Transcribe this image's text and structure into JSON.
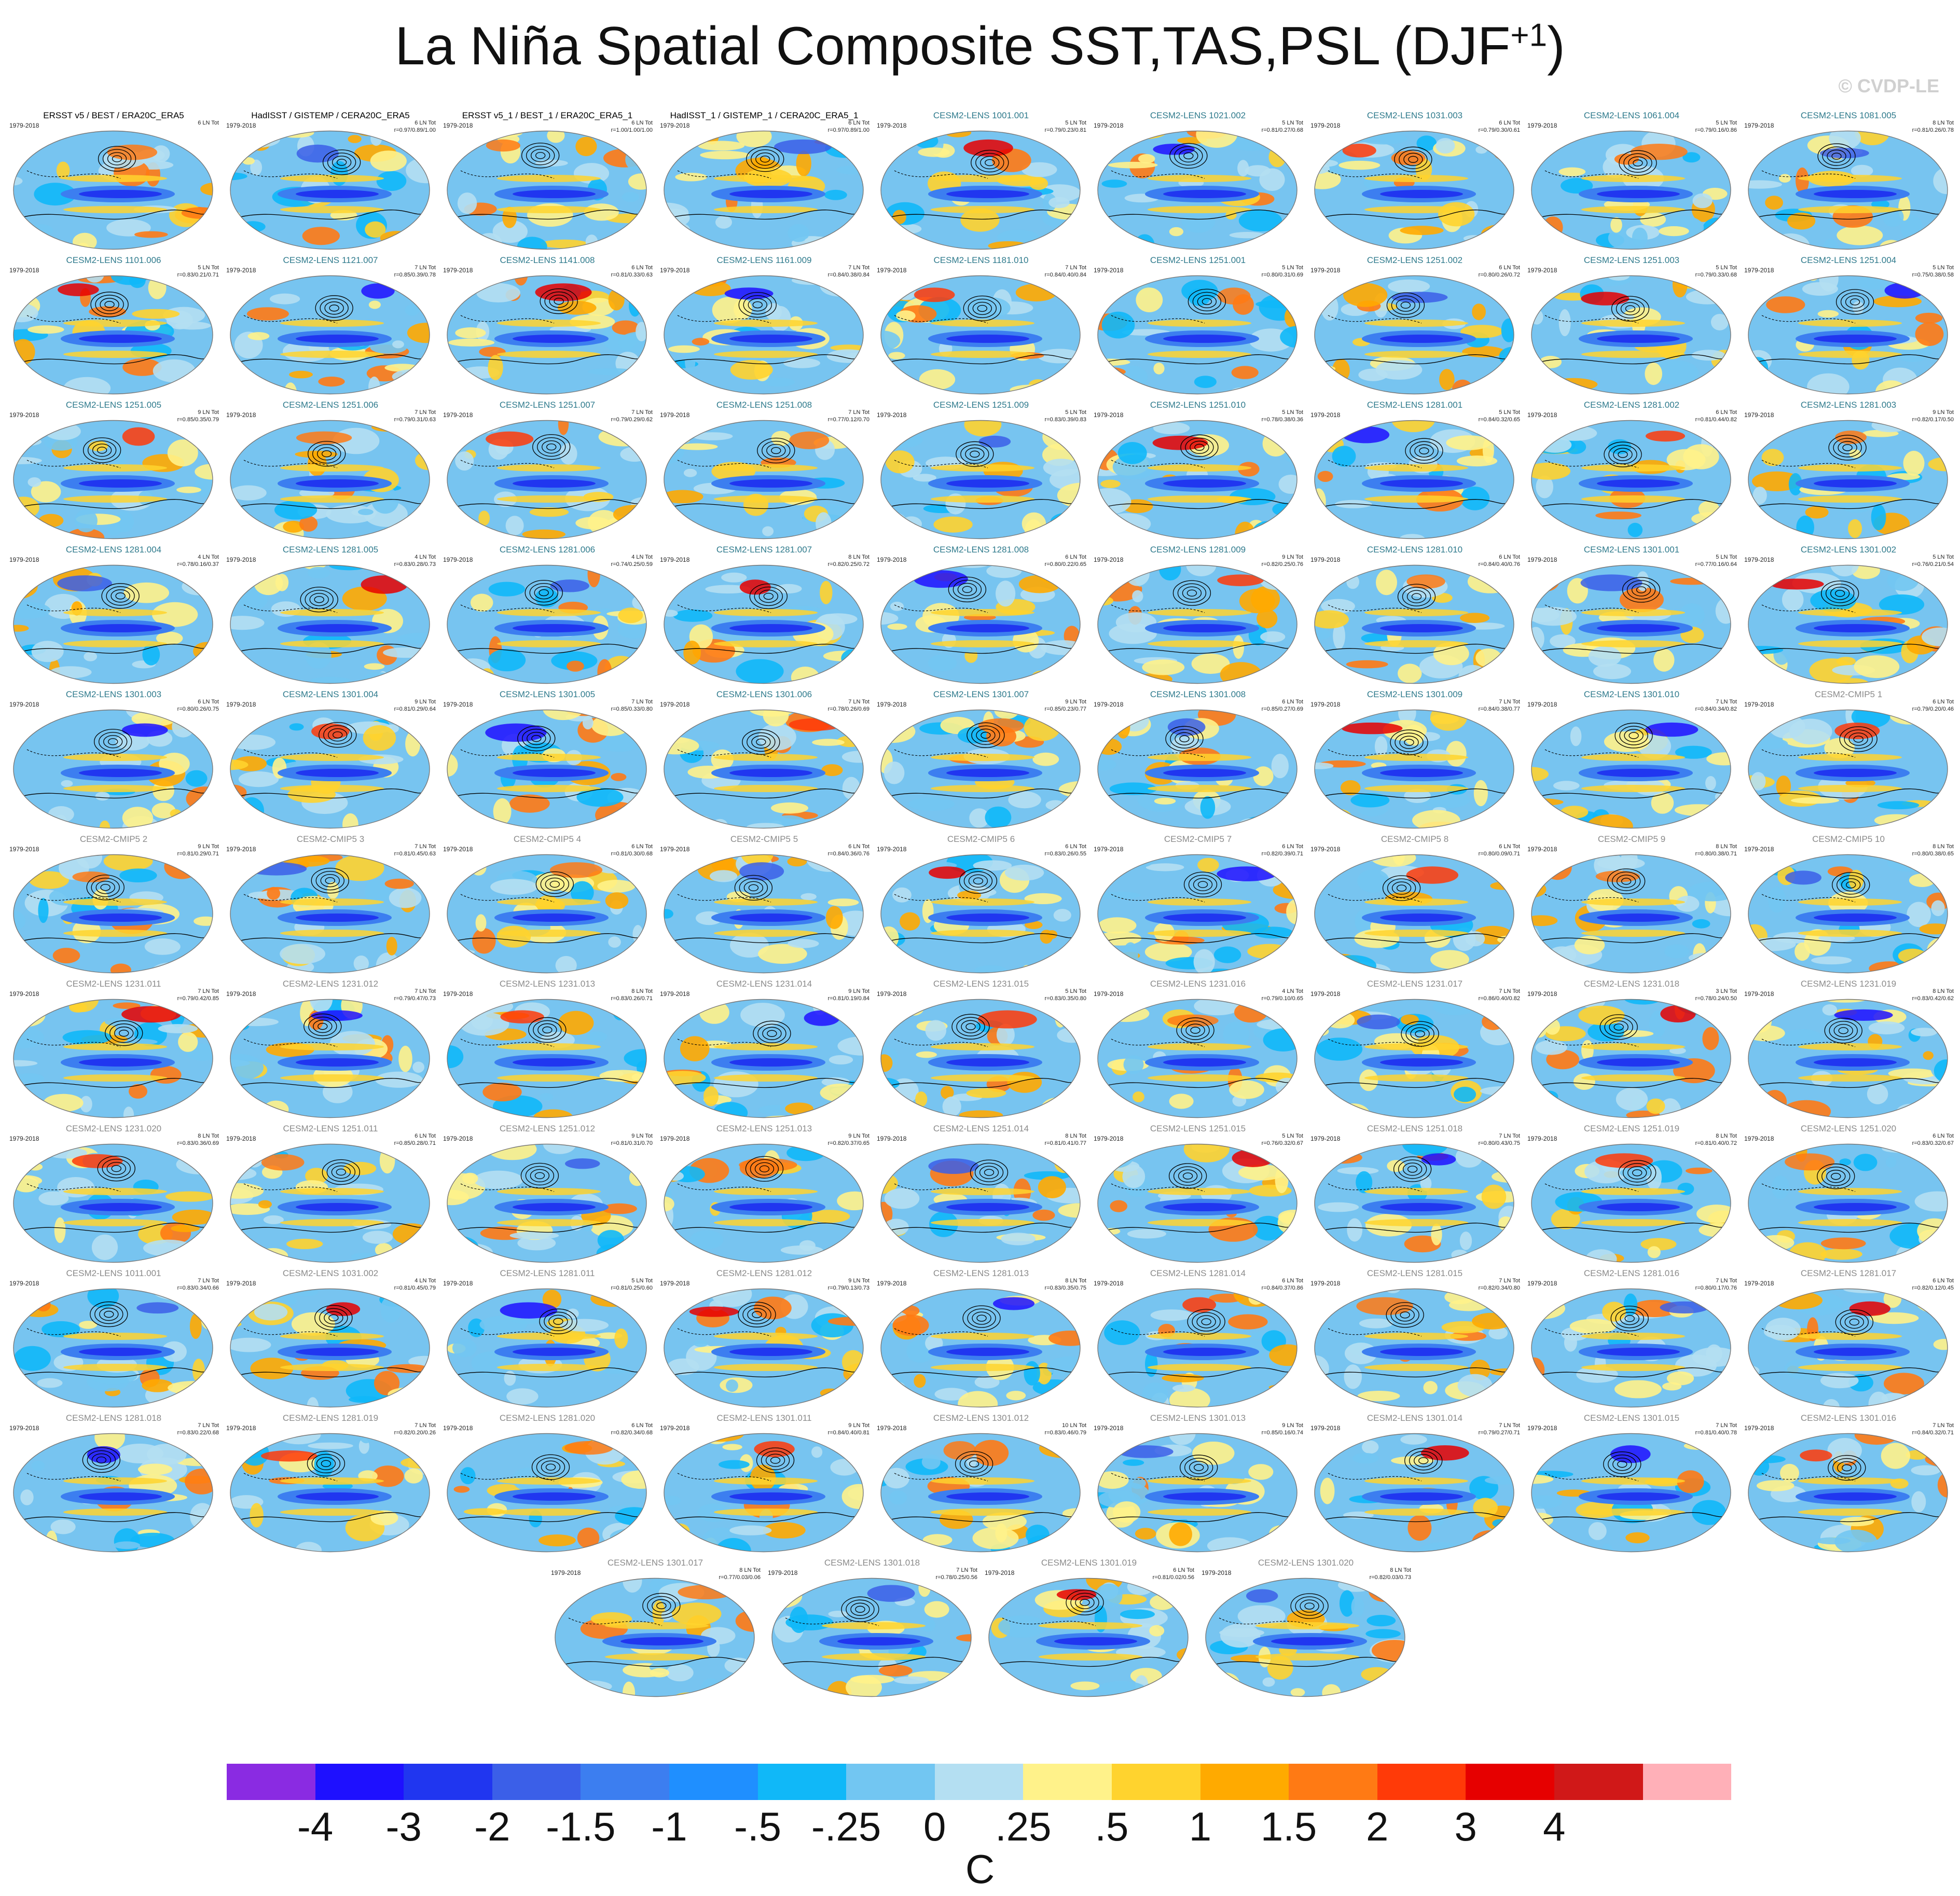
{
  "title": {
    "main": "La Niña Spatial Composite SST,TAS,PSL (DJF",
    "sup": "+1",
    "close": ")"
  },
  "credit": "© CVDP-LE",
  "years": "1979-2018",
  "colors": {
    "ocean_base": "#77c4f0",
    "obs_title": "#000000",
    "lens_title": "#2e7a8c",
    "cmip_title": "#8a8a8a",
    "contour": "#000000"
  },
  "panels": [
    {
      "name": "ERSST v5 / BEST / ERA20C_ERA5",
      "kind": "obs",
      "events": "6 LN Tot",
      "corr": ""
    },
    {
      "name": "HadISST / GISTEMP / CERA20C_ERA5",
      "kind": "obs",
      "events": "6 LN Tot",
      "corr": "r=0.97/0.89/1.00"
    },
    {
      "name": "ERSST v5_1 / BEST_1 / ERA20C_ERA5_1",
      "kind": "obs",
      "events": "6 LN Tot",
      "corr": "r=1.00/1.00/1.00"
    },
    {
      "name": "HadISST_1 / GISTEMP_1 / CERA20C_ERA5_1",
      "kind": "obs",
      "events": "6 LN Tot",
      "corr": "r=0.97/0.89/1.00"
    },
    {
      "name": "CESM2-LENS 1001.001",
      "kind": "lens",
      "events": "5 LN Tot",
      "corr": "r=0.79/0.23/0.81"
    },
    {
      "name": "CESM2-LENS 1021.002",
      "kind": "lens",
      "events": "5 LN Tot",
      "corr": "r=0.81/0.27/0.68"
    },
    {
      "name": "CESM2-LENS 1031.003",
      "kind": "lens",
      "events": "6 LN Tot",
      "corr": "r=0.79/0.30/0.61"
    },
    {
      "name": "CESM2-LENS 1061.004",
      "kind": "lens",
      "events": "5 LN Tot",
      "corr": "r=0.79/0.16/0.86"
    },
    {
      "name": "CESM2-LENS 1081.005",
      "kind": "lens",
      "events": "8 LN Tot",
      "corr": "r=0.81/0.26/0.78"
    },
    {
      "name": "CESM2-LENS 1101.006",
      "kind": "lens",
      "events": "5 LN Tot",
      "corr": "r=0.83/0.21/0.71"
    },
    {
      "name": "CESM2-LENS 1121.007",
      "kind": "lens",
      "events": "7 LN Tot",
      "corr": "r=0.85/0.39/0.78"
    },
    {
      "name": "CESM2-LENS 1141.008",
      "kind": "lens",
      "events": "6 LN Tot",
      "corr": "r=0.81/0.33/0.63"
    },
    {
      "name": "CESM2-LENS 1161.009",
      "kind": "lens",
      "events": "7 LN Tot",
      "corr": "r=0.84/0.38/0.84"
    },
    {
      "name": "CESM2-LENS 1181.010",
      "kind": "lens",
      "events": "7 LN Tot",
      "corr": "r=0.84/0.40/0.84"
    },
    {
      "name": "CESM2-LENS 1251.001",
      "kind": "lens",
      "events": "5 LN Tot",
      "corr": "r=0.80/0.31/0.69"
    },
    {
      "name": "CESM2-LENS 1251.002",
      "kind": "lens",
      "events": "6 LN Tot",
      "corr": "r=0.80/0.26/0.72"
    },
    {
      "name": "CESM2-LENS 1251.003",
      "kind": "lens",
      "events": "5 LN Tot",
      "corr": "r=0.79/0.33/0.68"
    },
    {
      "name": "CESM2-LENS 1251.004",
      "kind": "lens",
      "events": "5 LN Tot",
      "corr": "r=0.75/0.38/0.58"
    },
    {
      "name": "CESM2-LENS 1251.005",
      "kind": "lens",
      "events": "9 LN Tot",
      "corr": "r=0.85/0.35/0.79"
    },
    {
      "name": "CESM2-LENS 1251.006",
      "kind": "lens",
      "events": "7 LN Tot",
      "corr": "r=0.79/0.31/0.63"
    },
    {
      "name": "CESM2-LENS 1251.007",
      "kind": "lens",
      "events": "7 LN Tot",
      "corr": "r=0.79/0.29/0.62"
    },
    {
      "name": "CESM2-LENS 1251.008",
      "kind": "lens",
      "events": "7 LN Tot",
      "corr": "r=0.77/0.12/0.70"
    },
    {
      "name": "CESM2-LENS 1251.009",
      "kind": "lens",
      "events": "5 LN Tot",
      "corr": "r=0.83/0.39/0.83"
    },
    {
      "name": "CESM2-LENS 1251.010",
      "kind": "lens",
      "events": "5 LN Tot",
      "corr": "r=0.78/0.38/0.36"
    },
    {
      "name": "CESM2-LENS 1281.001",
      "kind": "lens",
      "events": "5 LN Tot",
      "corr": "r=0.84/0.32/0.65"
    },
    {
      "name": "CESM2-LENS 1281.002",
      "kind": "lens",
      "events": "6 LN Tot",
      "corr": "r=0.81/0.44/0.82"
    },
    {
      "name": "CESM2-LENS 1281.003",
      "kind": "lens",
      "events": "9 LN Tot",
      "corr": "r=0.82/0.17/0.50"
    },
    {
      "name": "CESM2-LENS 1281.004",
      "kind": "lens",
      "events": "4 LN Tot",
      "corr": "r=0.78/0.16/0.37"
    },
    {
      "name": "CESM2-LENS 1281.005",
      "kind": "lens",
      "events": "4 LN Tot",
      "corr": "r=0.83/0.28/0.73"
    },
    {
      "name": "CESM2-LENS 1281.006",
      "kind": "lens",
      "events": "4 LN Tot",
      "corr": "r=0.74/0.25/0.59"
    },
    {
      "name": "CESM2-LENS 1281.007",
      "kind": "lens",
      "events": "8 LN Tot",
      "corr": "r=0.82/0.25/0.72"
    },
    {
      "name": "CESM2-LENS 1281.008",
      "kind": "lens",
      "events": "6 LN Tot",
      "corr": "r=0.80/0.22/0.65"
    },
    {
      "name": "CESM2-LENS 1281.009",
      "kind": "lens",
      "events": "9 LN Tot",
      "corr": "r=0.82/0.25/0.76"
    },
    {
      "name": "CESM2-LENS 1281.010",
      "kind": "lens",
      "events": "6 LN Tot",
      "corr": "r=0.84/0.40/0.76"
    },
    {
      "name": "CESM2-LENS 1301.001",
      "kind": "lens",
      "events": "5 LN Tot",
      "corr": "r=0.77/0.16/0.64"
    },
    {
      "name": "CESM2-LENS 1301.002",
      "kind": "lens",
      "events": "5 LN Tot",
      "corr": "r=0.76/0.21/0.54"
    },
    {
      "name": "CESM2-LENS 1301.003",
      "kind": "lens",
      "events": "6 LN Tot",
      "corr": "r=0.80/0.26/0.75"
    },
    {
      "name": "CESM2-LENS 1301.004",
      "kind": "lens",
      "events": "9 LN Tot",
      "corr": "r=0.81/0.29/0.64"
    },
    {
      "name": "CESM2-LENS 1301.005",
      "kind": "lens",
      "events": "7 LN Tot",
      "corr": "r=0.85/0.33/0.80"
    },
    {
      "name": "CESM2-LENS 1301.006",
      "kind": "lens",
      "events": "7 LN Tot",
      "corr": "r=0.78/0.26/0.69"
    },
    {
      "name": "CESM2-LENS 1301.007",
      "kind": "lens",
      "events": "9 LN Tot",
      "corr": "r=0.85/0.23/0.77"
    },
    {
      "name": "CESM2-LENS 1301.008",
      "kind": "lens",
      "events": "6 LN Tot",
      "corr": "r=0.85/0.27/0.69"
    },
    {
      "name": "CESM2-LENS 1301.009",
      "kind": "lens",
      "events": "7 LN Tot",
      "corr": "r=0.84/0.38/0.77"
    },
    {
      "name": "CESM2-LENS 1301.010",
      "kind": "lens",
      "events": "7 LN Tot",
      "corr": "r=0.84/0.34/0.82"
    },
    {
      "name": "CESM2-CMIP5 1",
      "kind": "cmip",
      "events": "6 LN Tot",
      "corr": "r=0.79/0.20/0.46"
    },
    {
      "name": "CESM2-CMIP5 2",
      "kind": "cmip",
      "events": "9 LN Tot",
      "corr": "r=0.81/0.29/0.71"
    },
    {
      "name": "CESM2-CMIP5 3",
      "kind": "cmip",
      "events": "7 LN Tot",
      "corr": "r=0.81/0.45/0.63"
    },
    {
      "name": "CESM2-CMIP5 4",
      "kind": "cmip",
      "events": "6 LN Tot",
      "corr": "r=0.81/0.30/0.68"
    },
    {
      "name": "CESM2-CMIP5 5",
      "kind": "cmip",
      "events": "6 LN Tot",
      "corr": "r=0.84/0.36/0.76"
    },
    {
      "name": "CESM2-CMIP5 6",
      "kind": "cmip",
      "events": "6 LN Tot",
      "corr": "r=0.83/0.26/0.55"
    },
    {
      "name": "CESM2-CMIP5 7",
      "kind": "cmip",
      "events": "6 LN Tot",
      "corr": "r=0.82/0.39/0.71"
    },
    {
      "name": "CESM2-CMIP5 8",
      "kind": "cmip",
      "events": "6 LN Tot",
      "corr": "r=0.80/0.09/0.71"
    },
    {
      "name": "CESM2-CMIP5 9",
      "kind": "cmip",
      "events": "8 LN Tot",
      "corr": "r=0.80/0.38/0.71"
    },
    {
      "name": "CESM2-CMIP5 10",
      "kind": "cmip",
      "events": "8 LN Tot",
      "corr": "r=0.80/0.38/0.65"
    },
    {
      "name": "CESM2-LENS 1231.011",
      "kind": "cmip",
      "events": "7 LN Tot",
      "corr": "r=0.79/0.42/0.85"
    },
    {
      "name": "CESM2-LENS 1231.012",
      "kind": "cmip",
      "events": "7 LN Tot",
      "corr": "r=0.79/0.47/0.73"
    },
    {
      "name": "CESM2-LENS 1231.013",
      "kind": "cmip",
      "events": "8 LN Tot",
      "corr": "r=0.83/0.26/0.71"
    },
    {
      "name": "CESM2-LENS 1231.014",
      "kind": "cmip",
      "events": "9 LN Tot",
      "corr": "r=0.81/0.19/0.84"
    },
    {
      "name": "CESM2-LENS 1231.015",
      "kind": "cmip",
      "events": "5 LN Tot",
      "corr": "r=0.83/0.35/0.80"
    },
    {
      "name": "CESM2-LENS 1231.016",
      "kind": "cmip",
      "events": "4 LN Tot",
      "corr": "r=0.79/0.10/0.65"
    },
    {
      "name": "CESM2-LENS 1231.017",
      "kind": "cmip",
      "events": "7 LN Tot",
      "corr": "r=0.86/0.40/0.82"
    },
    {
      "name": "CESM2-LENS 1231.018",
      "kind": "cmip",
      "events": "3 LN Tot",
      "corr": "r=0.78/0.24/0.50"
    },
    {
      "name": "CESM2-LENS 1231.019",
      "kind": "cmip",
      "events": "8 LN Tot",
      "corr": "r=0.83/0.42/0.62"
    },
    {
      "name": "CESM2-LENS 1231.020",
      "kind": "cmip",
      "events": "8 LN Tot",
      "corr": "r=0.83/0.36/0.69"
    },
    {
      "name": "CESM2-LENS 1251.011",
      "kind": "cmip",
      "events": "6 LN Tot",
      "corr": "r=0.85/0.28/0.71"
    },
    {
      "name": "CESM2-LENS 1251.012",
      "kind": "cmip",
      "events": "9 LN Tot",
      "corr": "r=0.81/0.31/0.70"
    },
    {
      "name": "CESM2-LENS 1251.013",
      "kind": "cmip",
      "events": "9 LN Tot",
      "corr": "r=0.82/0.37/0.65"
    },
    {
      "name": "CESM2-LENS 1251.014",
      "kind": "cmip",
      "events": "8 LN Tot",
      "corr": "r=0.81/0.41/0.77"
    },
    {
      "name": "CESM2-LENS 1251.015",
      "kind": "cmip",
      "events": "5 LN Tot",
      "corr": "r=0.76/0.32/0.67"
    },
    {
      "name": "CESM2-LENS 1251.018",
      "kind": "cmip",
      "events": "7 LN Tot",
      "corr": "r=0.80/0.43/0.75"
    },
    {
      "name": "CESM2-LENS 1251.019",
      "kind": "cmip",
      "events": "8 LN Tot",
      "corr": "r=0.81/0.40/0.72"
    },
    {
      "name": "CESM2-LENS 1251.020",
      "kind": "cmip",
      "events": "6 LN Tot",
      "corr": "r=0.83/0.32/0.67"
    },
    {
      "name": "CESM2-LENS 1011.001",
      "kind": "cmip",
      "events": "7 LN Tot",
      "corr": "r=0.83/0.34/0.66"
    },
    {
      "name": "CESM2-LENS 1031.002",
      "kind": "cmip",
      "events": "4 LN Tot",
      "corr": "r=0.81/0.45/0.79"
    },
    {
      "name": "CESM2-LENS 1281.011",
      "kind": "cmip",
      "events": "5 LN Tot",
      "corr": "r=0.81/0.25/0.60"
    },
    {
      "name": "CESM2-LENS 1281.012",
      "kind": "cmip",
      "events": "9 LN Tot",
      "corr": "r=0.79/0.13/0.73"
    },
    {
      "name": "CESM2-LENS 1281.013",
      "kind": "cmip",
      "events": "8 LN Tot",
      "corr": "r=0.83/0.35/0.75"
    },
    {
      "name": "CESM2-LENS 1281.014",
      "kind": "cmip",
      "events": "6 LN Tot",
      "corr": "r=0.84/0.37/0.86"
    },
    {
      "name": "CESM2-LENS 1281.015",
      "kind": "cmip",
      "events": "7 LN Tot",
      "corr": "r=0.82/0.34/0.80"
    },
    {
      "name": "CESM2-LENS 1281.016",
      "kind": "cmip",
      "events": "7 LN Tot",
      "corr": "r=0.80/0.17/0.76"
    },
    {
      "name": "CESM2-LENS 1281.017",
      "kind": "cmip",
      "events": "6 LN Tot",
      "corr": "r=0.82/0.12/0.45"
    },
    {
      "name": "CESM2-LENS 1281.018",
      "kind": "cmip",
      "events": "7 LN Tot",
      "corr": "r=0.83/0.22/0.68"
    },
    {
      "name": "CESM2-LENS 1281.019",
      "kind": "cmip",
      "events": "7 LN Tot",
      "corr": "r=0.82/0.20/0.26"
    },
    {
      "name": "CESM2-LENS 1281.020",
      "kind": "cmip",
      "events": "6 LN Tot",
      "corr": "r=0.82/0.34/0.68"
    },
    {
      "name": "CESM2-LENS 1301.011",
      "kind": "cmip",
      "events": "9 LN Tot",
      "corr": "r=0.84/0.40/0.81"
    },
    {
      "name": "CESM2-LENS 1301.012",
      "kind": "cmip",
      "events": "10 LN Tot",
      "corr": "r=0.83/0.46/0.79"
    },
    {
      "name": "CESM2-LENS 1301.013",
      "kind": "cmip",
      "events": "9 LN Tot",
      "corr": "r=0.85/0.16/0.74"
    },
    {
      "name": "CESM2-LENS 1301.014",
      "kind": "cmip",
      "events": "7 LN Tot",
      "corr": "r=0.79/0.27/0.71"
    },
    {
      "name": "CESM2-LENS 1301.015",
      "kind": "cmip",
      "events": "7 LN Tot",
      "corr": "r=0.81/0.40/0.78"
    },
    {
      "name": "CESM2-LENS 1301.016",
      "kind": "cmip",
      "events": "7 LN Tot",
      "corr": "r=0.84/0.32/0.71"
    },
    {
      "name": "CESM2-LENS 1301.017",
      "kind": "cmip",
      "events": "8 LN Tot",
      "corr": "r=0.77/0.03/0.06"
    },
    {
      "name": "CESM2-LENS 1301.018",
      "kind": "cmip",
      "events": "7 LN Tot",
      "corr": "r=0.78/0.25/0.56"
    },
    {
      "name": "CESM2-LENS 1301.019",
      "kind": "cmip",
      "events": "6 LN Tot",
      "corr": "r=0.81/0.02/0.56"
    },
    {
      "name": "CESM2-LENS 1301.020",
      "kind": "cmip",
      "events": "8 LN Tot",
      "corr": "r=0.82/0.03/0.73"
    }
  ],
  "colorbar": {
    "colors": [
      "#8a2be2",
      "#1e10ff",
      "#2036f0",
      "#3b5fe8",
      "#3c7ef0",
      "#1f8fff",
      "#10b8f8",
      "#72c6f2",
      "#b4dff2",
      "#fff28a",
      "#ffd32e",
      "#ffaa00",
      "#ff7a14",
      "#ff3a08",
      "#e60000",
      "#d01818",
      "#ffb0b8"
    ],
    "labels": [
      "-4",
      "-3",
      "-2",
      "-1.5",
      "-1",
      "-.5",
      "-.25",
      "0",
      ".25",
      ".5",
      "1",
      "1.5",
      "2",
      "3",
      "4"
    ],
    "units": "C"
  }
}
